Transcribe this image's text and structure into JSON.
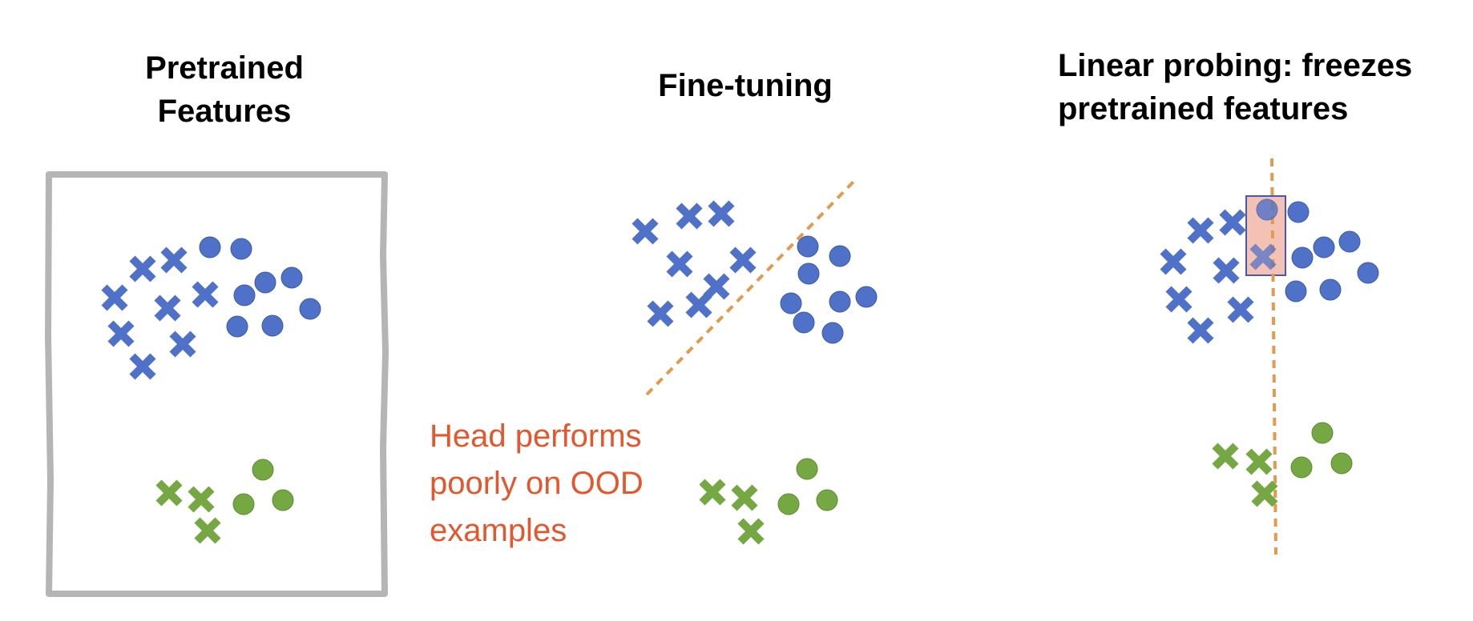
{
  "titles": {
    "pretrained": [
      "Pretrained",
      "Features"
    ],
    "fine_tuning": [
      "Fine-tuning"
    ],
    "linear_probing": [
      "Linear probing: freezes",
      "pretrained features"
    ]
  },
  "annotation": [
    "Head performs",
    "poorly on OOD",
    "examples"
  ],
  "colors": {
    "blue": "#4f72c8",
    "green": "#75a843",
    "frame": "#b5b5b5",
    "boundary": "#e39a4f",
    "annotation": "#e4572e",
    "highlight_fill": "#f2b6a8",
    "highlight_stroke": "#4a55b5"
  },
  "panels": [
    {
      "name": "pretrained-features",
      "marker_kinds": [
        "cross",
        "circle"
      ],
      "classes": [
        "blue",
        "green"
      ],
      "boundary": "none"
    },
    {
      "name": "fine-tuning",
      "marker_kinds": [
        "cross",
        "circle"
      ],
      "classes": [
        "blue",
        "green"
      ],
      "boundary": "dashed-diagonal"
    },
    {
      "name": "linear-probing",
      "marker_kinds": [
        "cross",
        "circle"
      ],
      "classes": [
        "blue",
        "green"
      ],
      "boundary": "dashed-vertical",
      "highlighted_overlap": true
    }
  ]
}
